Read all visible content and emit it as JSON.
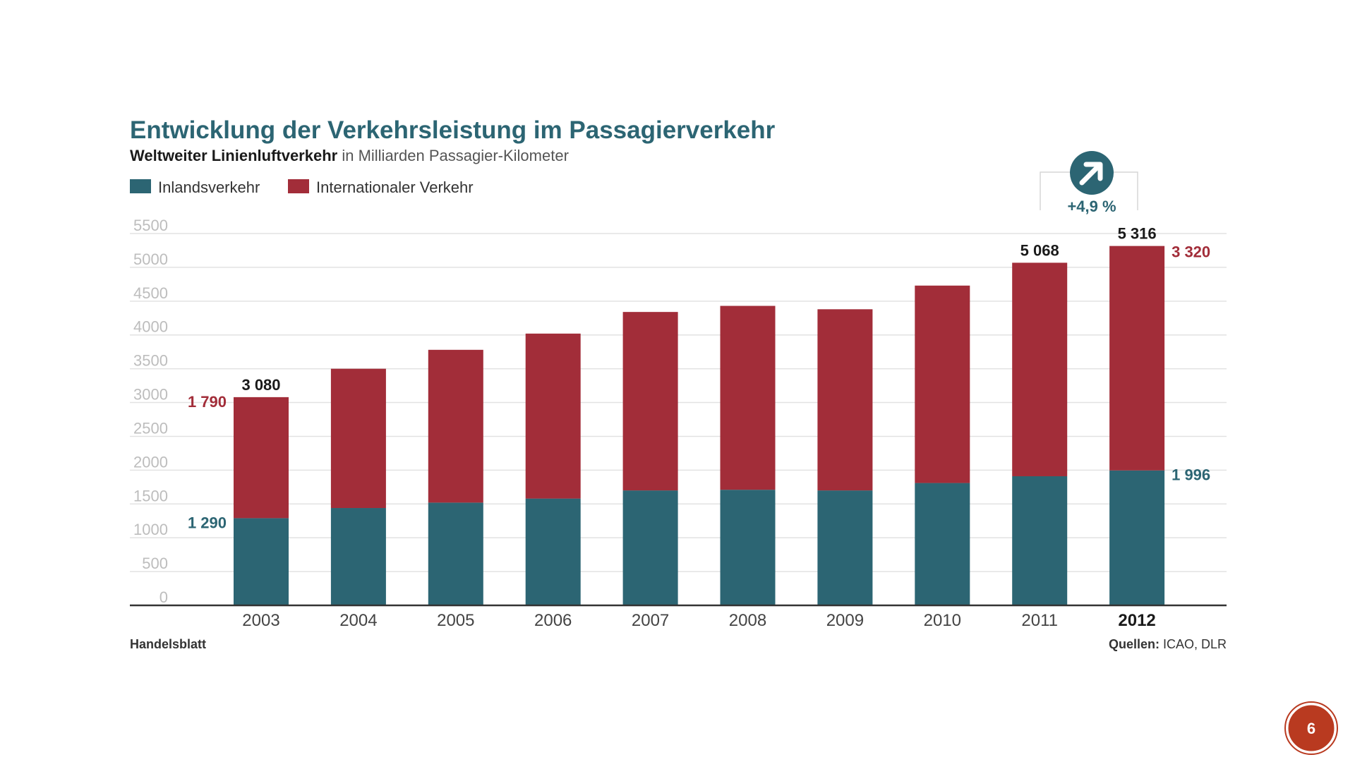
{
  "title": "Entwicklung der Verkehrsleistung im Passagierverkehr",
  "subtitle_bold": "Weltweiter Linienluftverkehr",
  "subtitle_rest": " in Milliarden Passagier-Kilometer",
  "legend": [
    {
      "label": "Inlandsverkehr",
      "color": "#2c6573"
    },
    {
      "label": "Internationaler Verkehr",
      "color": "#a22d39"
    }
  ],
  "growth": {
    "label": "+4,9 %"
  },
  "footer": {
    "left": "Handelsblatt",
    "right_bold": "Quellen:",
    "right_rest": " ICAO, DLR"
  },
  "page_number": "6",
  "colors": {
    "domestic": "#2c6573",
    "international": "#a22d39",
    "accent": "#2c6573",
    "badge": "#b93a20"
  },
  "chart_data": {
    "type": "bar",
    "stacked": true,
    "ylim": [
      0,
      5500
    ],
    "yticks": [
      0,
      500,
      1000,
      1500,
      2000,
      2500,
      3000,
      3500,
      4000,
      4500,
      5000,
      5500
    ],
    "categories": [
      "2003",
      "2004",
      "2005",
      "2006",
      "2007",
      "2008",
      "2009",
      "2010",
      "2011",
      "2012"
    ],
    "series": [
      {
        "name": "Inlandsverkehr",
        "values": [
          1290,
          1440,
          1520,
          1580,
          1700,
          1710,
          1700,
          1810,
          1910,
          1996
        ]
      },
      {
        "name": "Internationaler Verkehr",
        "values": [
          1790,
          2060,
          2260,
          2440,
          2640,
          2720,
          2680,
          2920,
          3158,
          3320
        ]
      }
    ],
    "totals": [
      3080,
      3500,
      3780,
      4020,
      4340,
      4430,
      4380,
      4730,
      5068,
      5316
    ],
    "value_labels": {
      "totals": {
        "2003": "3 080",
        "2011": "5 068",
        "2012": "5 316"
      },
      "international": {
        "2003": "1 790",
        "2012": "3 320"
      },
      "domestic": {
        "2003": "1 290",
        "2012": "1 996"
      }
    },
    "highlight_category": "2012"
  }
}
